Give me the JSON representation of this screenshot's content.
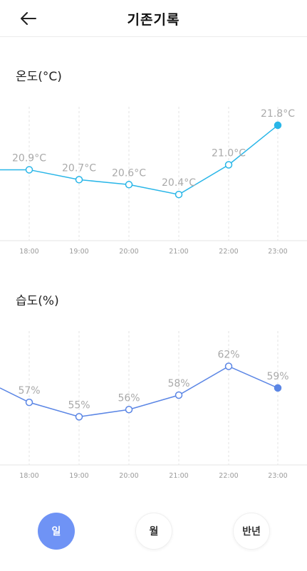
{
  "header": {
    "title": "기존기록"
  },
  "sections": {
    "temperature_label": "온도(°C)",
    "humidity_label": "습도(%)"
  },
  "colors": {
    "temp_line": "#29b6e8",
    "humidity_line": "#5b86e5",
    "active_tab": "#6f93f5",
    "label_text": "#a9a9a9"
  },
  "chart_data": [
    {
      "type": "line",
      "name": "temperature",
      "x": [
        "18:00",
        "19:00",
        "20:00",
        "21:00",
        "22:00",
        "23:00"
      ],
      "values": [
        20.9,
        20.7,
        20.6,
        20.4,
        21.0,
        21.8
      ],
      "labels": [
        "20.9°C",
        "20.7°C",
        "20.6°C",
        "20.4°C",
        "21.0°C",
        "21.8°C"
      ],
      "leading_value": 20.9,
      "ylim": [
        20.0,
        22.0
      ],
      "grid": "vertical-dashed"
    },
    {
      "type": "line",
      "name": "humidity",
      "x": [
        "18:00",
        "19:00",
        "20:00",
        "21:00",
        "22:00",
        "23:00"
      ],
      "values": [
        57,
        55,
        56,
        58,
        62,
        59
      ],
      "labels": [
        "57%",
        "55%",
        "56%",
        "58%",
        "62%",
        "59%"
      ],
      "leading_value": 59,
      "ylim": [
        50,
        66
      ],
      "grid": "vertical-dashed"
    }
  ],
  "tabs": [
    {
      "label": "일",
      "active": true
    },
    {
      "label": "월",
      "active": false
    },
    {
      "label": "반년",
      "active": false
    }
  ]
}
